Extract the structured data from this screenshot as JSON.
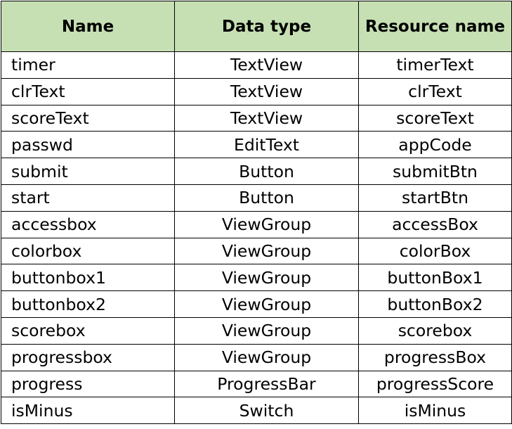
{
  "table": {
    "headers": {
      "name": "Name",
      "data_type": "Data type",
      "resource_name": "Resource name"
    },
    "rows": [
      {
        "name": "timer",
        "data_type": "TextView",
        "resource_name": "timerText"
      },
      {
        "name": "clrText",
        "data_type": "TextView",
        "resource_name": "clrText"
      },
      {
        "name": "scoreText",
        "data_type": "TextView",
        "resource_name": "scoreText"
      },
      {
        "name": "passwd",
        "data_type": "EditText",
        "resource_name": "appCode"
      },
      {
        "name": "submit",
        "data_type": "Button",
        "resource_name": "submitBtn"
      },
      {
        "name": "start",
        "data_type": "Button",
        "resource_name": "startBtn"
      },
      {
        "name": "accessbox",
        "data_type": "ViewGroup",
        "resource_name": "accessBox"
      },
      {
        "name": "colorbox",
        "data_type": "ViewGroup",
        "resource_name": "colorBox"
      },
      {
        "name": "buttonbox1",
        "data_type": "ViewGroup",
        "resource_name": "buttonBox1"
      },
      {
        "name": "buttonbox2",
        "data_type": "ViewGroup",
        "resource_name": "buttonBox2"
      },
      {
        "name": "scorebox",
        "data_type": "ViewGroup",
        "resource_name": "scorebox"
      },
      {
        "name": "progressbox",
        "data_type": "ViewGroup",
        "resource_name": "progressBox"
      },
      {
        "name": "progress",
        "data_type": "ProgressBar",
        "resource_name": "progressScore"
      },
      {
        "name": "isMinus",
        "data_type": "Switch",
        "resource_name": "isMinus"
      }
    ]
  },
  "colors": {
    "header_background": "#c6e0b4",
    "border": "#000000",
    "text": "#000000"
  }
}
